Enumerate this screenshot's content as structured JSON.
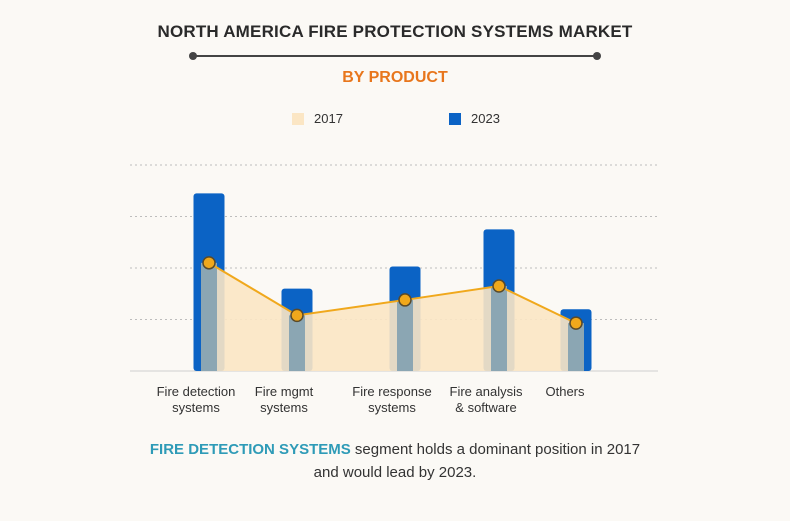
{
  "title": "NORTH AMERICA FIRE PROTECTION SYSTEMS MARKET",
  "subtitle": "BY PRODUCT",
  "caption": {
    "highlight": "FIRE DETECTION SYSTEMS",
    "line1_rest": " segment holds a dominant position in 2017",
    "line2": "and would lead by 2023."
  },
  "colors": {
    "bar_2023": "#0b63c5",
    "bar_2017": "#8ba6b3",
    "area_2017": "#fbe6c4",
    "line_2017": "#f0a81c",
    "title": "#2a2a2a",
    "subtitle": "#e8761c",
    "highlight": "#2e9bb7"
  },
  "chart_data": {
    "type": "bar",
    "title": "NORTH AMERICA FIRE PROTECTION SYSTEMS MARKET",
    "subtitle": "BY PRODUCT",
    "categories": [
      [
        "Fire detection",
        "systems"
      ],
      [
        "Fire mgmt",
        "systems"
      ],
      [
        "Fire response",
        "systems"
      ],
      [
        "Fire analysis",
        "& software"
      ],
      [
        "Others"
      ]
    ],
    "series": [
      {
        "name": "2017",
        "values": [
          2.1,
          1.08,
          1.38,
          1.65,
          0.93
        ]
      },
      {
        "name": "2023",
        "values": [
          3.45,
          1.6,
          2.03,
          2.75,
          1.2
        ]
      }
    ],
    "ylim": [
      0,
      4
    ],
    "grid": true,
    "legend_position": "top"
  }
}
